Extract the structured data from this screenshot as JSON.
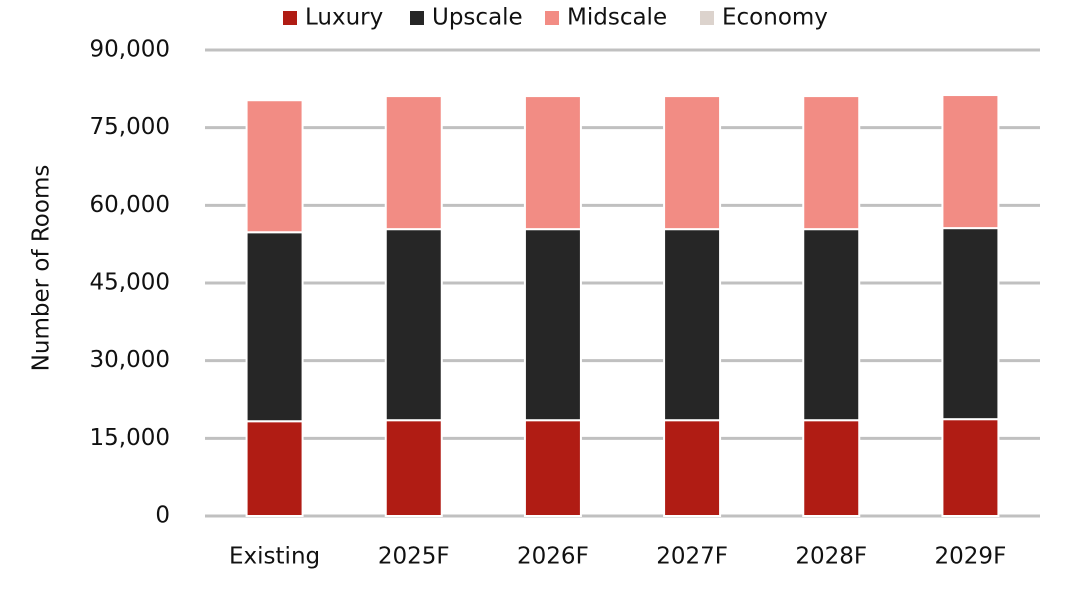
{
  "chart_data": {
    "type": "stacked-bar",
    "y_label": "Number of Rooms",
    "categories": [
      "Existing",
      "2025F",
      "2026F",
      "2027F",
      "2028F",
      "2029F"
    ],
    "series": [
      {
        "name": "Luxury",
        "color": "#b01c14",
        "values": [
          18300,
          18500,
          18500,
          18500,
          18500,
          18700
        ]
      },
      {
        "name": "Upscale",
        "color": "#262626",
        "values": [
          36500,
          36900,
          36900,
          36900,
          36900,
          36900
        ]
      },
      {
        "name": "Midscale",
        "color": "#f28c84",
        "values": [
          25500,
          25700,
          25700,
          25700,
          25700,
          25700
        ]
      },
      {
        "name": "Economy",
        "color": "#dcd3cd",
        "values": [
          0,
          0,
          0,
          0,
          0,
          0
        ]
      }
    ],
    "ylim": [
      0,
      90000
    ],
    "yticks": [
      0,
      {
        "value": 15000,
        "label": "15,000"
      },
      {
        "value": 30000,
        "label": "30,000"
      },
      {
        "value": 45000,
        "label": "45,000"
      },
      {
        "value": 60000,
        "label": "60,000"
      },
      {
        "value": 75000,
        "label": "75,000"
      },
      {
        "value": 90000,
        "label": "90,000"
      }
    ],
    "grid": true,
    "legend": "top"
  }
}
